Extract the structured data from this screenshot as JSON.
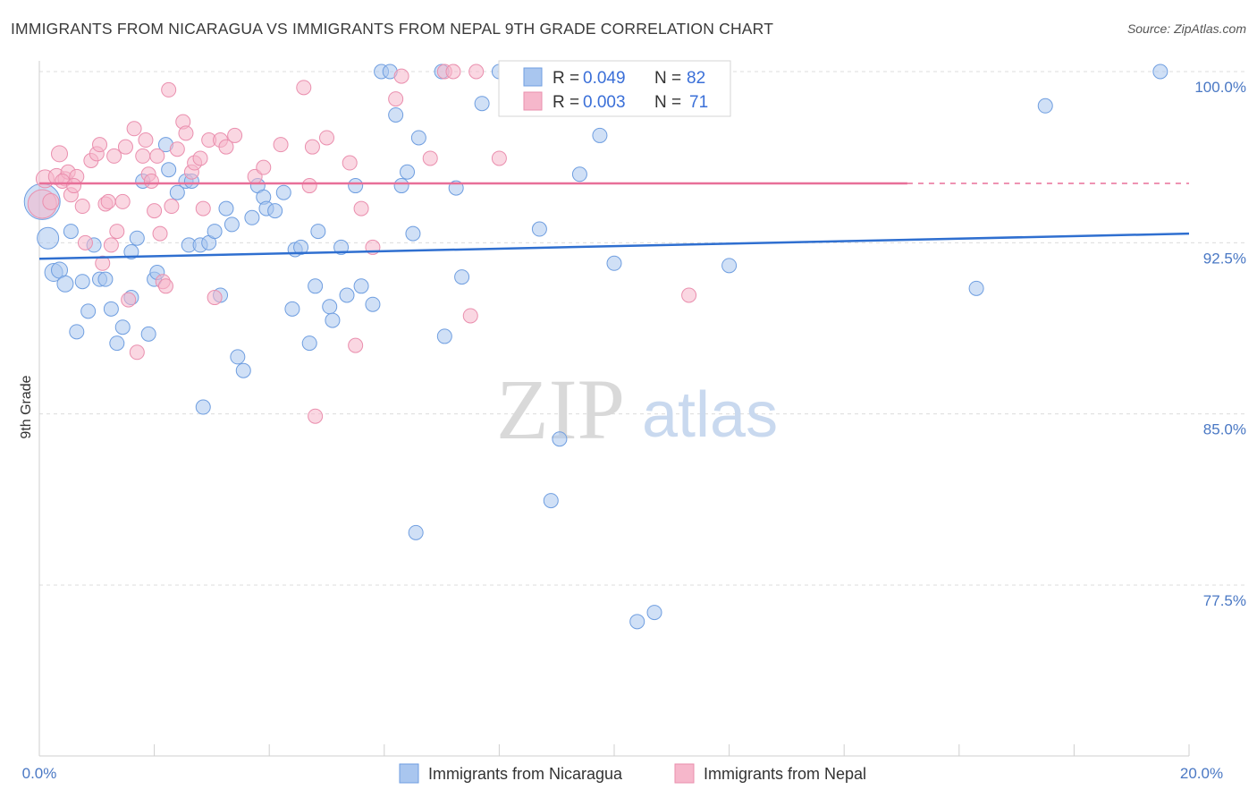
{
  "header": {
    "title": "IMMIGRANTS FROM NICARAGUA VS IMMIGRANTS FROM NEPAL 9TH GRADE CORRELATION CHART",
    "source": "Source: ZipAtlas.com"
  },
  "watermark": {
    "zip": "ZIP",
    "atlas": "atlas"
  },
  "legend": {
    "r_label": "R =",
    "n_label": "N =",
    "entries": [
      {
        "r": "0.049",
        "n": "82",
        "color": "#a9c6ef"
      },
      {
        "r": "0.003",
        "n": "71",
        "color": "#f6b7cb"
      }
    ]
  },
  "bottom_legend": [
    {
      "label": "Immigrants from Nicaragua",
      "color": "#a9c6ef"
    },
    {
      "label": "Immigrants from Nepal",
      "color": "#f6b7cb"
    }
  ],
  "colors": {
    "blue_fill": "#a9c6ef",
    "blue_stroke": "#6f9ee0",
    "blue_line": "#2f6fd0",
    "pink_fill": "#f6b7cb",
    "pink_stroke": "#ea8fae",
    "pink_line": "#e86f98",
    "tick": "#4a78c4"
  },
  "chart_data": {
    "type": "scatter",
    "title": "IMMIGRANTS FROM NICARAGUA VS IMMIGRANTS FROM NEPAL 9TH GRADE CORRELATION CHART",
    "xlabel": "",
    "ylabel": "9th Grade",
    "xlim": [
      0,
      20
    ],
    "ylim": [
      70.5,
      101
    ],
    "x_tick_labels": [
      "0.0%",
      "20.0%"
    ],
    "y_ticks": [
      100,
      92.5,
      85,
      77.5
    ],
    "y_tick_labels": [
      "100.0%",
      "92.5%",
      "85.0%",
      "77.5%"
    ],
    "grid": true,
    "legend_position": "top-center",
    "series": [
      {
        "name": "Immigrants from Nicaragua",
        "trend": {
          "x": [
            0,
            20
          ],
          "y": [
            91.8,
            92.9
          ]
        },
        "points": [
          [
            0.05,
            94.3,
            20
          ],
          [
            0.15,
            92.7,
            12
          ],
          [
            0.25,
            91.2,
            10
          ],
          [
            0.35,
            91.3,
            9
          ],
          [
            0.45,
            90.7,
            9
          ],
          [
            0.55,
            93.0,
            8
          ],
          [
            0.65,
            88.6,
            8
          ],
          [
            0.75,
            90.8,
            8
          ],
          [
            0.85,
            89.5,
            8
          ],
          [
            0.95,
            92.4,
            8
          ],
          [
            1.05,
            90.9,
            8
          ],
          [
            1.15,
            90.9,
            8
          ],
          [
            1.25,
            89.6,
            8
          ],
          [
            1.35,
            88.1,
            8
          ],
          [
            1.45,
            88.8,
            8
          ],
          [
            1.6,
            92.1,
            8
          ],
          [
            1.6,
            90.1,
            8
          ],
          [
            1.7,
            92.7,
            8
          ],
          [
            1.8,
            95.2,
            8
          ],
          [
            1.9,
            88.5,
            8
          ],
          [
            2.0,
            90.9,
            8
          ],
          [
            2.05,
            91.2,
            8
          ],
          [
            2.2,
            96.8,
            8
          ],
          [
            2.25,
            95.7,
            8
          ],
          [
            2.4,
            94.7,
            8
          ],
          [
            2.55,
            95.2,
            8
          ],
          [
            2.6,
            92.4,
            8
          ],
          [
            2.65,
            95.2,
            8
          ],
          [
            2.8,
            92.4,
            8
          ],
          [
            2.85,
            85.3,
            8
          ],
          [
            2.95,
            92.5,
            8
          ],
          [
            3.05,
            93.0,
            8
          ],
          [
            3.15,
            90.2,
            8
          ],
          [
            3.25,
            94.0,
            8
          ],
          [
            3.35,
            93.3,
            8
          ],
          [
            3.45,
            87.5,
            8
          ],
          [
            3.55,
            86.9,
            8
          ],
          [
            3.7,
            93.6,
            8
          ],
          [
            3.8,
            95.0,
            8
          ],
          [
            3.9,
            94.5,
            8
          ],
          [
            3.95,
            94.0,
            8
          ],
          [
            4.1,
            93.9,
            8
          ],
          [
            4.25,
            94.7,
            8
          ],
          [
            4.4,
            89.6,
            8
          ],
          [
            4.45,
            92.2,
            8
          ],
          [
            4.55,
            92.3,
            8
          ],
          [
            4.7,
            88.1,
            8
          ],
          [
            4.8,
            90.6,
            8
          ],
          [
            4.85,
            93.0,
            8
          ],
          [
            5.05,
            89.7,
            8
          ],
          [
            5.1,
            89.1,
            8
          ],
          [
            5.25,
            92.3,
            8
          ],
          [
            5.35,
            90.2,
            8
          ],
          [
            5.5,
            95.0,
            8
          ],
          [
            5.6,
            90.6,
            8
          ],
          [
            5.8,
            89.8,
            8
          ],
          [
            5.95,
            100.0,
            8
          ],
          [
            6.1,
            100.0,
            8
          ],
          [
            6.2,
            98.1,
            8
          ],
          [
            6.3,
            95.0,
            8
          ],
          [
            6.4,
            95.6,
            8
          ],
          [
            6.5,
            92.9,
            8
          ],
          [
            6.55,
            79.8,
            8
          ],
          [
            6.6,
            97.1,
            8
          ],
          [
            7.05,
            88.4,
            8
          ],
          [
            7.0,
            100.0,
            8
          ],
          [
            7.25,
            94.9,
            8
          ],
          [
            7.35,
            91.0,
            8
          ],
          [
            7.7,
            98.6,
            8
          ],
          [
            8.0,
            100.0,
            8
          ],
          [
            8.7,
            93.1,
            8
          ],
          [
            8.9,
            81.2,
            8
          ],
          [
            9.05,
            83.9,
            8
          ],
          [
            9.4,
            95.5,
            8
          ],
          [
            9.75,
            97.2,
            8
          ],
          [
            10.0,
            91.6,
            8
          ],
          [
            10.4,
            75.9,
            8
          ],
          [
            10.7,
            76.3,
            8
          ],
          [
            12.0,
            91.5,
            8
          ],
          [
            16.3,
            90.5,
            8
          ],
          [
            17.5,
            98.5,
            8
          ],
          [
            19.5,
            100.0,
            8
          ]
        ]
      },
      {
        "name": "Immigrants from Nepal",
        "trend": {
          "x": [
            0,
            15.1
          ],
          "y": [
            95.1,
            95.1
          ]
        },
        "points": [
          [
            0.05,
            94.2,
            16
          ],
          [
            0.1,
            95.3,
            10
          ],
          [
            0.2,
            94.3,
            9
          ],
          [
            0.3,
            95.4,
            9
          ],
          [
            0.35,
            96.4,
            9
          ],
          [
            0.45,
            95.3,
            8
          ],
          [
            0.5,
            95.6,
            8
          ],
          [
            0.55,
            94.6,
            8
          ],
          [
            0.65,
            95.4,
            8
          ],
          [
            0.75,
            94.1,
            8
          ],
          [
            0.8,
            92.5,
            8
          ],
          [
            0.9,
            96.1,
            8
          ],
          [
            1.0,
            96.4,
            8
          ],
          [
            1.05,
            96.8,
            8
          ],
          [
            1.1,
            91.6,
            8
          ],
          [
            1.15,
            94.2,
            8
          ],
          [
            1.2,
            94.3,
            8
          ],
          [
            1.3,
            96.3,
            8
          ],
          [
            1.35,
            93.0,
            8
          ],
          [
            1.45,
            94.3,
            8
          ],
          [
            1.5,
            96.7,
            8
          ],
          [
            1.55,
            90.0,
            8
          ],
          [
            1.65,
            97.5,
            8
          ],
          [
            1.7,
            87.7,
            8
          ],
          [
            1.8,
            96.3,
            8
          ],
          [
            1.85,
            97.0,
            8
          ],
          [
            1.9,
            95.5,
            8
          ],
          [
            1.95,
            95.2,
            8
          ],
          [
            2.0,
            93.9,
            8
          ],
          [
            2.05,
            96.3,
            8
          ],
          [
            2.1,
            92.9,
            8
          ],
          [
            2.15,
            90.8,
            8
          ],
          [
            2.2,
            90.6,
            8
          ],
          [
            2.25,
            99.2,
            8
          ],
          [
            2.3,
            94.1,
            8
          ],
          [
            2.4,
            96.6,
            8
          ],
          [
            2.5,
            97.8,
            8
          ],
          [
            2.55,
            97.3,
            8
          ],
          [
            2.65,
            95.6,
            8
          ],
          [
            2.7,
            96.0,
            8
          ],
          [
            2.8,
            96.2,
            8
          ],
          [
            2.85,
            94.0,
            8
          ],
          [
            2.95,
            97.0,
            8
          ],
          [
            3.05,
            90.1,
            8
          ],
          [
            3.15,
            97.0,
            8
          ],
          [
            3.25,
            96.7,
            8
          ],
          [
            3.4,
            97.2,
            8
          ],
          [
            3.75,
            95.4,
            8
          ],
          [
            3.9,
            95.8,
            8
          ],
          [
            4.2,
            96.8,
            8
          ],
          [
            4.6,
            99.3,
            8
          ],
          [
            4.7,
            95.0,
            8
          ],
          [
            4.75,
            96.7,
            8
          ],
          [
            4.8,
            84.9,
            8
          ],
          [
            5.0,
            97.1,
            8
          ],
          [
            5.4,
            96.0,
            8
          ],
          [
            5.5,
            88.0,
            8
          ],
          [
            5.6,
            94.0,
            8
          ],
          [
            5.8,
            92.3,
            8
          ],
          [
            6.2,
            98.8,
            8
          ],
          [
            6.3,
            99.8,
            8
          ],
          [
            6.8,
            96.2,
            8
          ],
          [
            7.05,
            100.0,
            8
          ],
          [
            7.2,
            100.0,
            8
          ],
          [
            7.6,
            100.0,
            8
          ],
          [
            7.5,
            89.3,
            8
          ],
          [
            8.0,
            96.2,
            8
          ],
          [
            11.3,
            90.2,
            8
          ],
          [
            0.4,
            95.2,
            8
          ],
          [
            0.6,
            95.0,
            8
          ],
          [
            1.25,
            92.4,
            8
          ]
        ]
      }
    ]
  }
}
